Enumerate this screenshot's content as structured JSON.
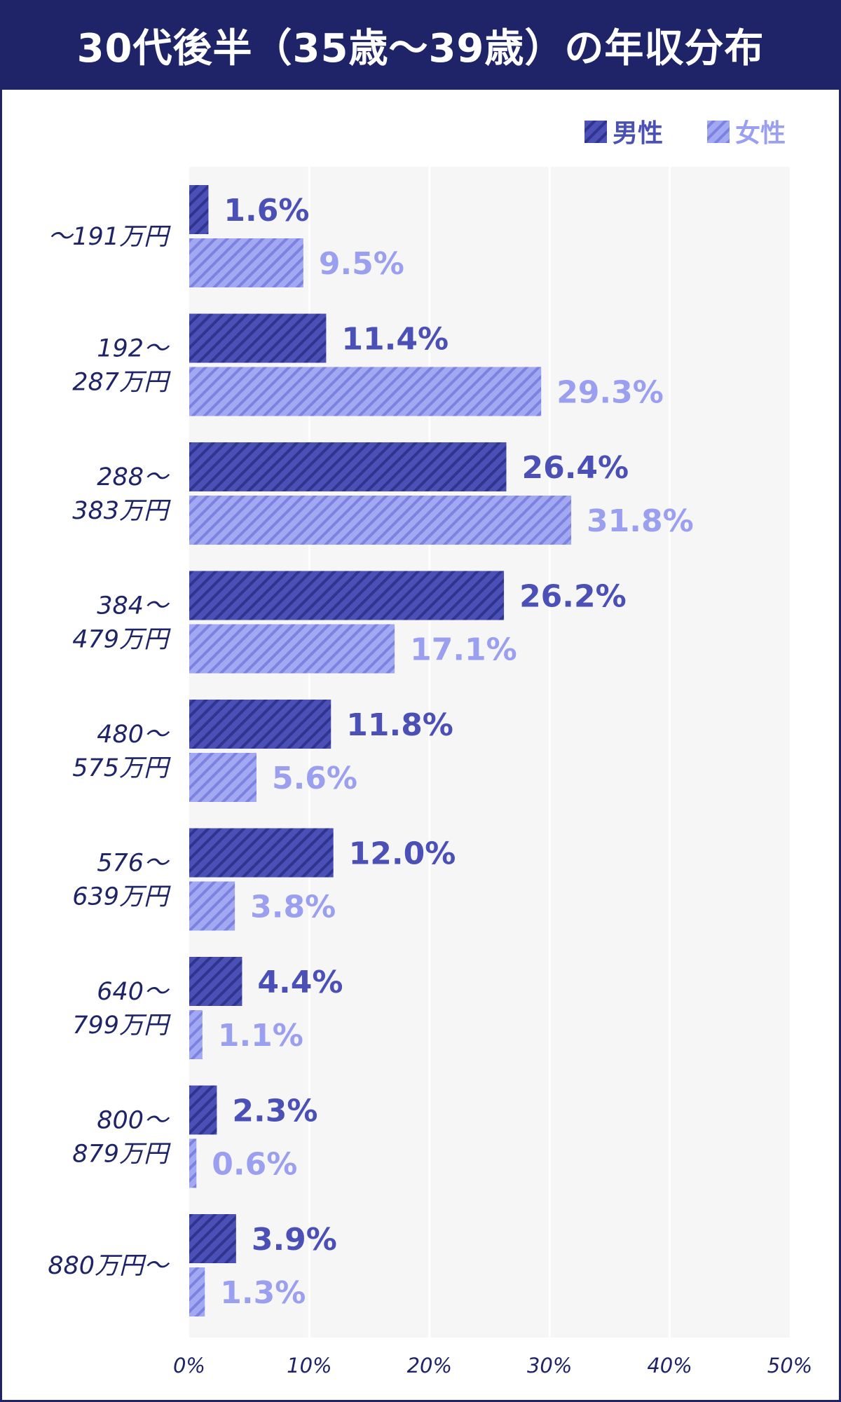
{
  "header": {
    "title": "30代後半（35歳〜39歳）の年収分布"
  },
  "colors": {
    "header_bg": "#1f2468",
    "male": "#4a50b5",
    "female": "#9a9ff0",
    "plot_bg": "#f6f6f6",
    "axis_text": "#1f2468"
  },
  "chart_data": {
    "type": "bar",
    "orientation": "horizontal",
    "categories": [
      [
        "〜191万円"
      ],
      [
        "192〜",
        "287万円"
      ],
      [
        "288〜",
        "383万円"
      ],
      [
        "384〜",
        "479万円"
      ],
      [
        "480〜",
        "575万円"
      ],
      [
        "576〜",
        "639万円"
      ],
      [
        "640〜",
        "799万円"
      ],
      [
        "800〜",
        "879万円"
      ],
      [
        "880万円〜"
      ]
    ],
    "series": [
      {
        "name": "男性",
        "values": [
          1.6,
          11.4,
          26.4,
          26.2,
          11.8,
          12.0,
          4.4,
          2.3,
          3.9
        ]
      },
      {
        "name": "女性",
        "values": [
          9.5,
          29.3,
          31.8,
          17.1,
          5.6,
          3.8,
          1.1,
          0.6,
          1.3
        ]
      }
    ],
    "xlim": [
      0,
      50
    ],
    "xticks": [
      0,
      10,
      20,
      30,
      40,
      50
    ],
    "tick_suffix": "%",
    "value_suffix": "%",
    "grid": true,
    "legend_position": "top-right"
  }
}
